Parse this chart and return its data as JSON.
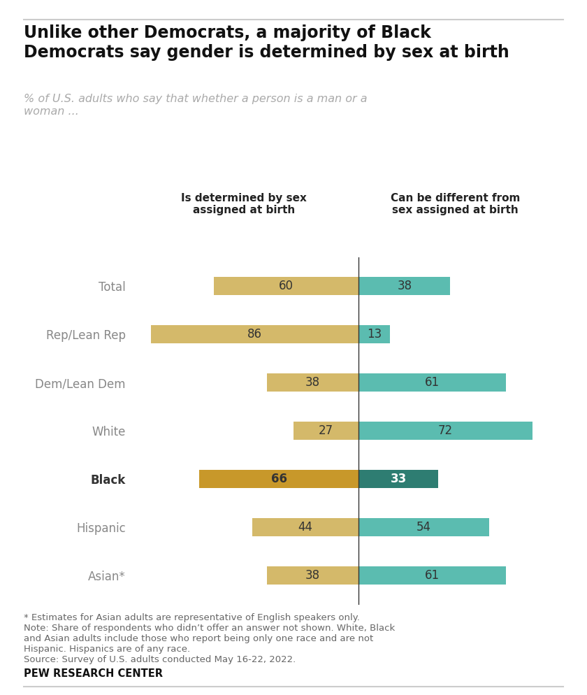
{
  "title": "Unlike other Democrats, a majority of Black\nDemocrats say gender is determined by sex at birth",
  "subtitle": "% of U.S. adults who say that whether a person is a man or a\nwoman ...",
  "col1_header": "Is determined by sex\nassigned at birth",
  "col2_header": "Can be different from\nsex assigned at birth",
  "categories": [
    "Total",
    "Rep/Lean Rep",
    "Dem/Lean Dem",
    "White",
    "Black",
    "Hispanic",
    "Asian*"
  ],
  "bold_categories": [
    "Black"
  ],
  "values_left": [
    60,
    86,
    38,
    27,
    66,
    44,
    38
  ],
  "values_right": [
    38,
    13,
    61,
    72,
    33,
    54,
    61
  ],
  "highlight_row": 4,
  "color_left_normal": "#d4b96a",
  "color_left_highlight": "#c8982a",
  "color_right_normal": "#5bbcb0",
  "color_right_highlight": "#2e7d72",
  "text_color_normal": "#333333",
  "text_color_highlight_left": "#333333",
  "text_color_highlight_right": "#ffffff",
  "footnote1": "* Estimates for Asian adults are representative of English speakers only.",
  "footnote2": "Note: Share of respondents who didn’t offer an answer not shown. White, Black\nand Asian adults include those who report being only one race and are not\nHispanic. Hispanics are of any race.",
  "footnote3": "Source: Survey of U.S. adults conducted May 16-22, 2022.",
  "source_label": "PEW RESEARCH CENTER",
  "background_color": "#ffffff",
  "bar_height": 0.38,
  "xlim_left": -95,
  "xlim_right": 80
}
